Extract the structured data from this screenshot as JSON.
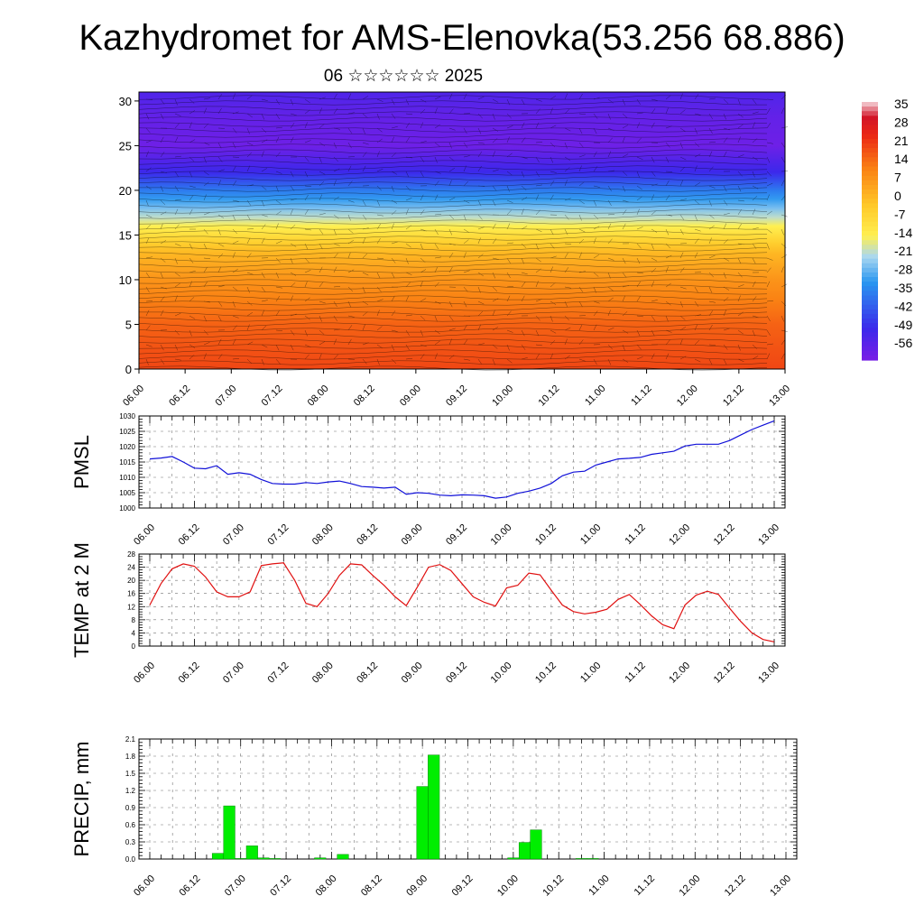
{
  "title": "Kazhydromet for AMS-Elenovka(53.256 68.886)",
  "subtitle": "06 ☆☆☆☆☆☆ 2025",
  "colors": {
    "pmsl_line": "#1010d8",
    "temp_line": "#e01010",
    "precip_bar": "#00ee00",
    "precip_bar_edge": "#008800"
  },
  "chart_data": [
    {
      "type": "heatmap",
      "y_ticks": [
        "0",
        "5",
        "10",
        "15",
        "20",
        "25",
        "30"
      ],
      "ylim": [
        0,
        31
      ],
      "x_ticks": [
        "06.00",
        "06.12",
        "07.00",
        "07.12",
        "08.00",
        "08.12",
        "09.00",
        "09.12",
        "10.00",
        "10.12",
        "11.00",
        "11.12",
        "12.00",
        "12.12",
        "13.00"
      ],
      "colorbar_labels": [
        "35",
        "28",
        "21",
        "14",
        "7",
        "0",
        "-7",
        "-14",
        "-21",
        "-28",
        "-35",
        "-42",
        "-49",
        "-56"
      ],
      "colorbar_range": [
        -60,
        38
      ],
      "profile": [
        {
          "h": 0,
          "t": 21
        },
        {
          "h": 5,
          "t": 17
        },
        {
          "h": 10,
          "t": 9
        },
        {
          "h": 13,
          "t": 2
        },
        {
          "h": 15.5,
          "t": -10
        },
        {
          "h": 17.5,
          "t": -22
        },
        {
          "h": 20,
          "t": -35
        },
        {
          "h": 22,
          "t": -48
        },
        {
          "h": 25,
          "t": -58
        },
        {
          "h": 28,
          "t": -56
        },
        {
          "h": 31,
          "t": -52
        }
      ]
    },
    {
      "type": "line",
      "ylabel": "PMSL",
      "ylim": [
        1000,
        1030
      ],
      "y_ticks": [
        "1000",
        "1005",
        "1010",
        "1015",
        "1020",
        "1025",
        "1030"
      ],
      "x_ticks": [
        "06.00",
        "06.12",
        "07.00",
        "07.12",
        "08.00",
        "08.12",
        "09.00",
        "09.12",
        "10.00",
        "10.12",
        "11.00",
        "11.12",
        "12.00",
        "12.12",
        "13.00"
      ],
      "x_hours": [
        0,
        3,
        6,
        9,
        12,
        15,
        18,
        21,
        24,
        27,
        30,
        33,
        36,
        39,
        42,
        45,
        48,
        51,
        54,
        57,
        60,
        63,
        66,
        69,
        72,
        75,
        78,
        81,
        84,
        87,
        90,
        93,
        96,
        99,
        102,
        105,
        108,
        111,
        114,
        117,
        120,
        123,
        126,
        129,
        132,
        135,
        138,
        141,
        144,
        147,
        150,
        153,
        156,
        159,
        162,
        165,
        168
      ],
      "values": [
        1016,
        1016.3,
        1016.8,
        1015,
        1013,
        1012.8,
        1013.8,
        1011,
        1011.5,
        1011,
        1009.3,
        1008,
        1007.8,
        1007.8,
        1008.3,
        1008,
        1008.5,
        1008.8,
        1008,
        1007,
        1006.8,
        1006.5,
        1006.8,
        1004.5,
        1005,
        1004.8,
        1004.2,
        1004,
        1004.3,
        1004.2,
        1004,
        1003.2,
        1003.6,
        1004.8,
        1005.5,
        1006.5,
        1008,
        1010.5,
        1011.7,
        1012,
        1014,
        1015,
        1016,
        1016.2,
        1016.5,
        1017.5,
        1018,
        1018.5,
        1020.2,
        1020.8,
        1020.8,
        1020.8,
        1022,
        1023.8,
        1025.6,
        1027,
        1028.4
      ]
    },
    {
      "type": "line",
      "ylabel": "TEMP at 2 M",
      "ylim": [
        0,
        28
      ],
      "y_ticks": [
        "0",
        "4",
        "8",
        "12",
        "16",
        "20",
        "24",
        "28"
      ],
      "x_ticks": [
        "06.00",
        "06.12",
        "07.00",
        "07.12",
        "08.00",
        "08.12",
        "09.00",
        "09.12",
        "10.00",
        "10.12",
        "11.00",
        "11.12",
        "12.00",
        "12.12",
        "13.00"
      ],
      "x_hours": [
        0,
        3,
        6,
        9,
        12,
        15,
        18,
        21,
        24,
        27,
        30,
        33,
        36,
        39,
        42,
        45,
        48,
        51,
        54,
        57,
        60,
        63,
        66,
        69,
        72,
        75,
        78,
        81,
        84,
        87,
        90,
        93,
        96,
        99,
        102,
        105,
        108,
        111,
        114,
        117,
        120,
        123,
        126,
        129,
        132,
        135,
        138,
        141,
        144,
        147,
        150,
        153,
        156,
        159,
        162,
        165,
        168
      ],
      "values": [
        12.5,
        19,
        23.5,
        25,
        24.3,
        21,
        16.5,
        15,
        15,
        16.5,
        24.5,
        25,
        25.3,
        20,
        13,
        12,
        16,
        21.5,
        25,
        24.7,
        21.5,
        18.5,
        15,
        12.3,
        18,
        24,
        24.8,
        23,
        19,
        15,
        13.3,
        12.2,
        17.7,
        18.5,
        22.2,
        21.7,
        17,
        12.5,
        10.5,
        9.8,
        10.3,
        11.2,
        14.2,
        15.7,
        12.6,
        9.2,
        6.5,
        5.3,
        12.5,
        15.5,
        16.7,
        15.7,
        11.5,
        7.5,
        4,
        2,
        1.3
      ]
    },
    {
      "type": "bar",
      "ylabel": "PRECIP, mm",
      "ylim": [
        0,
        2.1
      ],
      "y_ticks": [
        "0.0",
        "0.3",
        "0.6",
        "0.9",
        "1.2",
        "1.5",
        "1.8",
        "2.1"
      ],
      "x_ticks": [
        "06.00",
        "06.12",
        "07.00",
        "07.12",
        "08.00",
        "08.12",
        "09.00",
        "09.12",
        "10.00",
        "10.12",
        "11.00",
        "11.12",
        "12.00",
        "12.12",
        "13.00"
      ],
      "x_hours": [
        18,
        21,
        24,
        27,
        30,
        33,
        45,
        51,
        72,
        75,
        96,
        99,
        102,
        114,
        117
      ],
      "values": [
        0.1,
        0.93,
        0.01,
        0.23,
        0.02,
        0.01,
        0.02,
        0.08,
        1.27,
        1.82,
        0.02,
        0.29,
        0.51,
        0.01,
        0.01
      ]
    }
  ]
}
